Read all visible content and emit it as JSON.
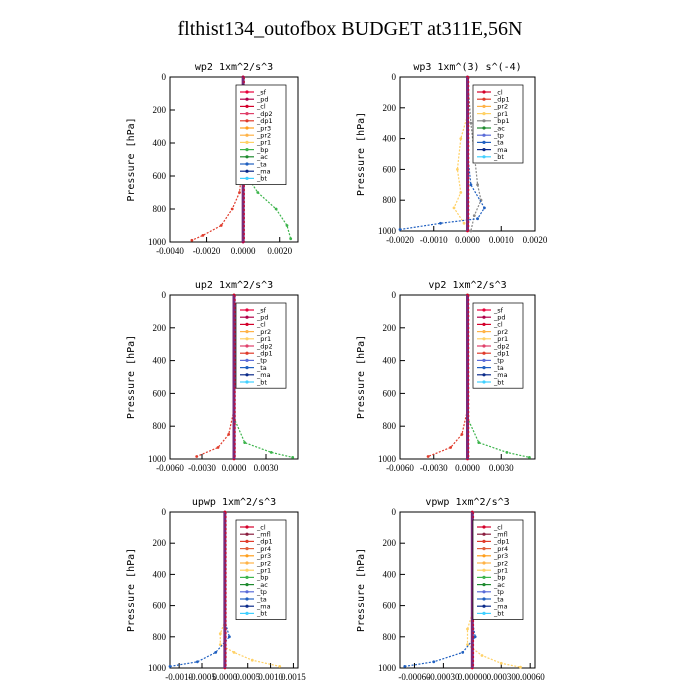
{
  "page": {
    "title": "flthist134_outofbox  BUDGET at311E,56N"
  },
  "colors": {
    "_sf": "#e8003c",
    "_pd": "#b0004a",
    "_cl": "#d4002a",
    "_dp2": "#e0406a",
    "_dp1": "#e03b2b",
    "_pr3": "#ff9f1c",
    "_pr2": "#ffb347",
    "_pr1": "#ffd166",
    "_bp": "#3cb44b",
    "_ac": "#1e8a2e",
    "_ta": "#2060c0",
    "_ma": "#0b2b8a",
    "_bt": "#40d0ff",
    "_tp": "#5a6cd8",
    "_mfl": "#8b1e3f",
    "_pr4": "#e0603c"
  },
  "chart_data": [
    {
      "type": "line",
      "title": "wp2   1xm^2/s^3",
      "ylabel": "Pressure [hPa]",
      "ylim": [
        1000,
        0
      ],
      "yticks": [
        "0",
        "200",
        "400",
        "600",
        "800",
        "1000"
      ],
      "xlim": [
        -0.004,
        0.003
      ],
      "xticks": [
        "-0.0040",
        "-0.0020",
        "0.0000",
        "0.0020"
      ],
      "xtick_values": [
        -0.004,
        -0.002,
        0.0,
        0.002
      ],
      "legend": [
        "_sf",
        "_pd",
        "_cl",
        "_dp2",
        "_dp1",
        "_pr3",
        "_pr2",
        "_pr1",
        "_bp",
        "_ac",
        "_ta",
        "_ma",
        "_bt"
      ],
      "series": [
        {
          "name": "_bp",
          "points": [
            [
              0.0,
              0
            ],
            [
              0.0,
              400
            ],
            [
              0.0002,
              600
            ],
            [
              0.0008,
              700
            ],
            [
              0.0018,
              800
            ],
            [
              0.0024,
              900
            ],
            [
              0.0026,
              980
            ]
          ]
        },
        {
          "name": "_dp1",
          "points": [
            [
              0.0,
              0
            ],
            [
              0.0,
              500
            ],
            [
              -0.0002,
              700
            ],
            [
              -0.0006,
              800
            ],
            [
              -0.0012,
              900
            ],
            [
              -0.0022,
              960
            ],
            [
              -0.0028,
              990
            ]
          ]
        },
        {
          "name": "_cl",
          "points": [
            [
              0.0,
              0
            ],
            [
              0.0,
              1000
            ]
          ]
        },
        {
          "name": "_pd",
          "points": [
            [
              0.0,
              0
            ],
            [
              0.0,
              1000
            ]
          ]
        }
      ]
    },
    {
      "type": "line",
      "title": "wp3   1xm^(3) s^(-4)",
      "ylabel": "Pressure [hPa]",
      "ylim": [
        1000,
        0
      ],
      "yticks": [
        "0",
        "200",
        "400",
        "600",
        "800",
        "1000"
      ],
      "xlim": [
        -0.002,
        0.002
      ],
      "xticks": [
        "-0.0020",
        "-0.0010",
        "0.0000",
        "0.0010",
        "0.0020"
      ],
      "xtick_values": [
        -0.002,
        -0.001,
        0.0,
        0.001,
        0.002
      ],
      "legend": [
        "_cl",
        "_dp1",
        "_pr2",
        "_pr1",
        "_bp1",
        "_ac",
        "_tp",
        "_ta",
        "_ma",
        "_bt"
      ],
      "series": [
        {
          "name": "_pr1",
          "points": [
            [
              0.0,
              0
            ],
            [
              0.0,
              250
            ],
            [
              -0.0002,
              400
            ],
            [
              -0.0003,
              600
            ],
            [
              -0.0002,
              750
            ],
            [
              -0.0004,
              850
            ],
            [
              -0.0001,
              950
            ]
          ]
        },
        {
          "name": "_bp1",
          "points": [
            [
              0.0,
              0
            ],
            [
              0.0001,
              300
            ],
            [
              0.0002,
              500
            ],
            [
              0.0003,
              700
            ],
            [
              0.0004,
              800
            ],
            [
              0.0002,
              900
            ],
            [
              0.0001,
              1000
            ]
          ]
        },
        {
          "name": "_ta",
          "points": [
            [
              0.0,
              0
            ],
            [
              0.0,
              500
            ],
            [
              0.0001,
              700
            ],
            [
              0.0005,
              850
            ],
            [
              0.0003,
              920
            ],
            [
              -0.0008,
              950
            ],
            [
              -0.002,
              990
            ]
          ]
        },
        {
          "name": "_cl",
          "points": [
            [
              0.0,
              0
            ],
            [
              0.0,
              1000
            ]
          ]
        }
      ]
    },
    {
      "type": "line",
      "title": "up2   1xm^2/s^3",
      "ylabel": "Pressure [hPa]",
      "ylim": [
        1000,
        0
      ],
      "yticks": [
        "0",
        "200",
        "400",
        "600",
        "800",
        "1000"
      ],
      "xlim": [
        -0.006,
        0.006
      ],
      "xticks": [
        "-0.0060",
        "-0.0030",
        "0.0000",
        "0.0030"
      ],
      "xtick_values": [
        -0.006,
        -0.003,
        0.0,
        0.003
      ],
      "legend": [
        "_sf",
        "_pd",
        "_cl",
        "_pr2",
        "_pr1",
        "_dp2",
        "_dp1",
        "_tp",
        "_ta",
        "_ma",
        "_bt"
      ],
      "series": [
        {
          "name": "_dp1",
          "points": [
            [
              0.0,
              0
            ],
            [
              0.0,
              700
            ],
            [
              -0.0005,
              850
            ],
            [
              -0.0015,
              930
            ],
            [
              -0.0035,
              985
            ]
          ]
        },
        {
          "name": "_bp",
          "points": [
            [
              0.0,
              0
            ],
            [
              0.0,
              750
            ],
            [
              0.001,
              900
            ],
            [
              0.0035,
              960
            ],
            [
              0.0055,
              990
            ]
          ]
        },
        {
          "name": "_cl",
          "points": [
            [
              0.0,
              0
            ],
            [
              0.0,
              1000
            ]
          ]
        }
      ]
    },
    {
      "type": "line",
      "title": "vp2   1xm^2/s^3",
      "ylabel": "Pressure [hPa]",
      "ylim": [
        1000,
        0
      ],
      "yticks": [
        "0",
        "200",
        "400",
        "600",
        "800",
        "1000"
      ],
      "xlim": [
        -0.006,
        0.006
      ],
      "xticks": [
        "-0.0060",
        "-0.0030",
        "0.0000",
        "0.0030"
      ],
      "xtick_values": [
        -0.006,
        -0.003,
        0.0,
        0.003
      ],
      "legend": [
        "_sf",
        "_pd",
        "_cl",
        "_pr2",
        "_pr1",
        "_dp2",
        "_dp1",
        "_tp",
        "_ta",
        "_ma",
        "_bt"
      ],
      "series": [
        {
          "name": "_dp1",
          "points": [
            [
              0.0,
              0
            ],
            [
              0.0,
              700
            ],
            [
              -0.0005,
              850
            ],
            [
              -0.0015,
              930
            ],
            [
              -0.0035,
              985
            ]
          ]
        },
        {
          "name": "_bp",
          "points": [
            [
              0.0,
              0
            ],
            [
              0.0,
              750
            ],
            [
              0.001,
              900
            ],
            [
              0.0035,
              960
            ],
            [
              0.0055,
              990
            ]
          ]
        },
        {
          "name": "_cl",
          "points": [
            [
              0.0,
              0
            ],
            [
              0.0,
              1000
            ]
          ]
        }
      ]
    },
    {
      "type": "line",
      "title": "upwp   1xm^2/s^3",
      "ylabel": "Pressure [hPa]",
      "ylim": [
        1000,
        0
      ],
      "yticks": [
        "0",
        "200",
        "400",
        "600",
        "800",
        "1000"
      ],
      "xlim": [
        -0.0012,
        0.0016
      ],
      "xticks": [
        "-0.0010",
        "-0.0005",
        "0.0000",
        "0.0005",
        "0.0010",
        "0.0015"
      ],
      "xtick_values": [
        -0.001,
        -0.0005,
        0.0,
        0.0005,
        0.001,
        0.0015
      ],
      "legend": [
        "_cl",
        "_mfl",
        "_dp1",
        "_pr4",
        "_pr3",
        "_pr2",
        "_pr1",
        "_bp",
        "_ac",
        "_tp",
        "_ta",
        "_ma",
        "_bt"
      ],
      "series": [
        {
          "name": "_pr1",
          "points": [
            [
              0.0,
              0
            ],
            [
              0.0,
              700
            ],
            [
              -0.0001,
              780
            ],
            [
              -0.0001,
              850
            ],
            [
              0.0002,
              900
            ],
            [
              0.0006,
              950
            ],
            [
              0.0012,
              990
            ]
          ]
        },
        {
          "name": "_ta",
          "points": [
            [
              0.0,
              0
            ],
            [
              0.0,
              700
            ],
            [
              0.0001,
              800
            ],
            [
              -0.0002,
              900
            ],
            [
              -0.0006,
              960
            ],
            [
              -0.0012,
              990
            ]
          ]
        },
        {
          "name": "_cl",
          "points": [
            [
              0.0,
              0
            ],
            [
              0.0,
              1000
            ]
          ]
        }
      ]
    },
    {
      "type": "line",
      "title": "vpwp   1xm^2/s^3",
      "ylabel": "Pressure [hPa]",
      "ylim": [
        1000,
        0
      ],
      "yticks": [
        "0",
        "200",
        "400",
        "600",
        "800",
        "1000"
      ],
      "xlim": [
        -0.00075,
        0.00065
      ],
      "xticks": [
        "-0.00060",
        "-0.00030",
        "0.00000",
        "0.00030",
        "0.00060"
      ],
      "xtick_values": [
        -0.0006,
        -0.0003,
        0.0,
        0.0003,
        0.0006
      ],
      "legend": [
        "_cl",
        "_mfl",
        "_dp1",
        "_pr4",
        "_pr3",
        "_pr2",
        "_pr1",
        "_bp",
        "_ac",
        "_tp",
        "_ta",
        "_ma",
        "_bt"
      ],
      "series": [
        {
          "name": "_pr1",
          "points": [
            [
              0.0,
              0
            ],
            [
              0.0,
              650
            ],
            [
              -5e-05,
              750
            ],
            [
              -5e-05,
              850
            ],
            [
              0.0001,
              920
            ],
            [
              0.0003,
              970
            ],
            [
              0.0005,
              995
            ]
          ]
        },
        {
          "name": "_ta",
          "points": [
            [
              0.0,
              0
            ],
            [
              0.0,
              700
            ],
            [
              3e-05,
              800
            ],
            [
              -0.0001,
              900
            ],
            [
              -0.0004,
              960
            ],
            [
              -0.0007,
              990
            ]
          ]
        },
        {
          "name": "_cl",
          "points": [
            [
              0.0,
              0
            ],
            [
              0.0,
              1000
            ]
          ]
        }
      ]
    }
  ]
}
